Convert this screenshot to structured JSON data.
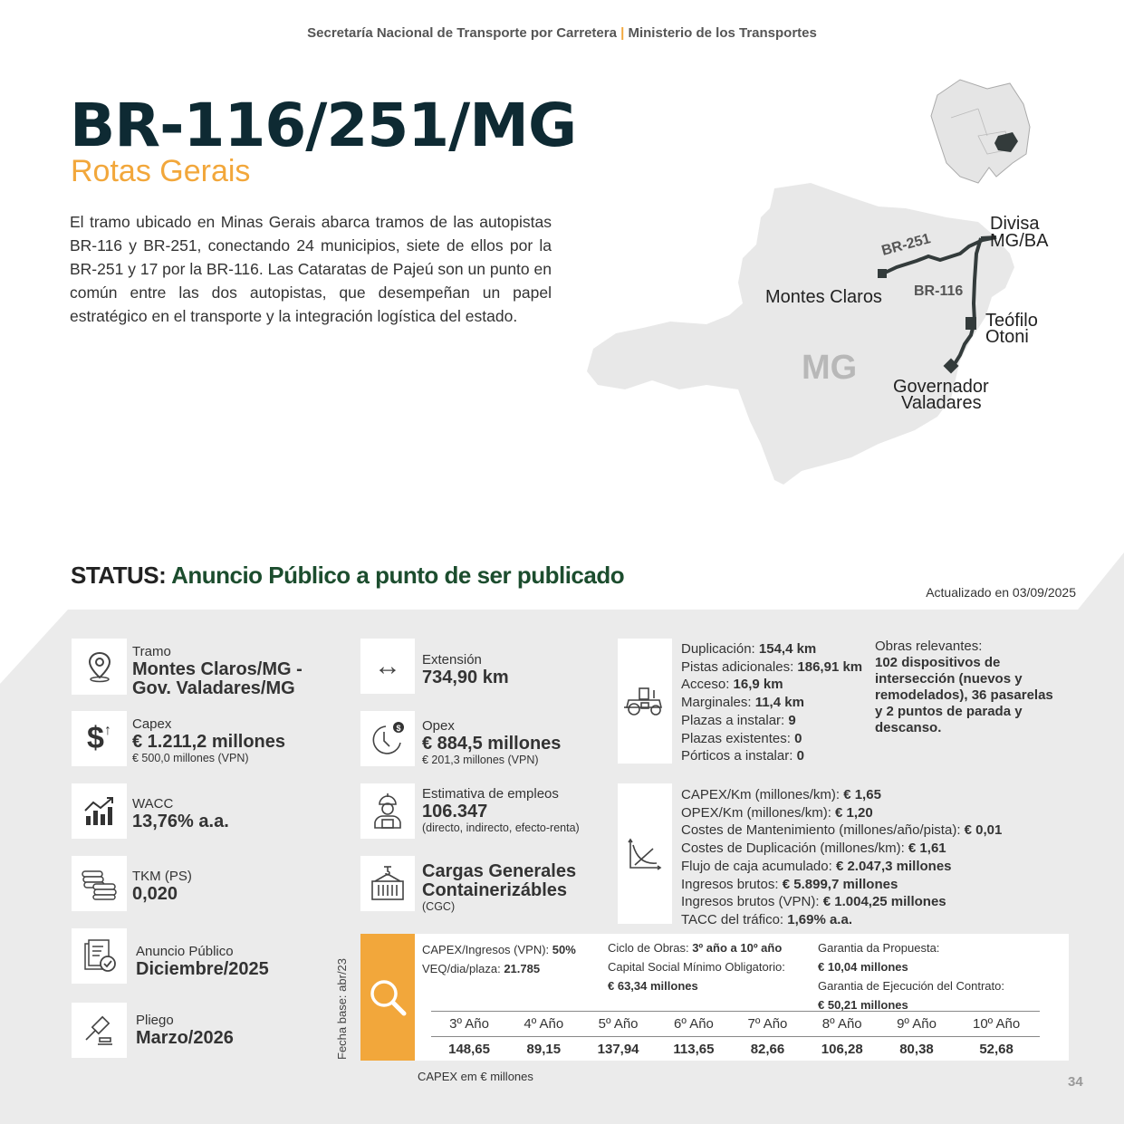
{
  "header": {
    "left": "Secretaría Nacional de Transporte por Carretera",
    "sep": "|",
    "right": "Ministerio de los Transportes"
  },
  "title": "BR-116/251/MG",
  "subtitle": "Rotas Gerais",
  "description": "El tramo ubicado en Minas Gerais abarca tramos de las autopistas BR-116 y BR-251, conectando 24 municipios, siete de ellos por la BR-251 y 17 por la BR-116. Las Cataratas de Pajeú son un punto en común entre las dos autopistas, que desempeñan un papel estratégico en el transporte y la integración logística del estado.",
  "map": {
    "state": "MG",
    "roads": [
      "BR-251",
      "BR-116"
    ],
    "cities": [
      "Montes Claros",
      "Divisa",
      "MG/BA",
      "Teófilo",
      "Otoni",
      "Governador",
      "Valadares"
    ],
    "route_color": "#333b3b",
    "state_fill": "#e8e8e8"
  },
  "status": {
    "label": "STATUS:",
    "value": "Anuncio Público a punto de ser publicado",
    "color": "#1c4d2e"
  },
  "updated": "Actualizado en 03/09/2025",
  "cards": {
    "tramo": {
      "label": "Tramo",
      "value1": "Montes Claros/MG -",
      "value2": "Gov. Valadares/MG"
    },
    "capex": {
      "label": "Capex",
      "value": "€ 1.211,2 millones",
      "note": "€ 500,0 millones (VPN)"
    },
    "wacc": {
      "label": "WACC",
      "value": "13,76% a.a."
    },
    "tkm": {
      "label": "TKM (PS)",
      "value": "0,020"
    },
    "anuncio": {
      "label": "Anuncio Público",
      "value": "Diciembre/2025"
    },
    "pliego": {
      "label": "Pliego",
      "value": "Marzo/2026"
    },
    "extension": {
      "label": "Extensión",
      "value": "734,90 km"
    },
    "opex": {
      "label": "Opex",
      "value": "€ 884,5 millones",
      "note": "€ 201,3 millones (VPN)"
    },
    "empleos": {
      "label": "Estimativa de empleos",
      "value": "106.347",
      "note": "(directo, indirecto, efecto-renta)"
    },
    "cargas": {
      "value1": "Cargas Generales",
      "value2": "Containerizábles",
      "note": "(CGC)"
    }
  },
  "obras": {
    "items": [
      {
        "k": "Duplicación: ",
        "v": "154,4 km"
      },
      {
        "k": "Pistas adicionales: ",
        "v": "186,91 km"
      },
      {
        "k": "Acceso: ",
        "v": "16,9 km"
      },
      {
        "k": "Marginales: ",
        "v": "11,4 km"
      },
      {
        "k": "Plazas a instalar:  ",
        "v": "9"
      },
      {
        "k": "Plazas existentes: ",
        "v": "0"
      },
      {
        "k": "Pórticos a instalar: ",
        "v": "0"
      }
    ],
    "relevantes_label": "Obras relevantes:",
    "relevantes": "102 dispositivos de intersección (nuevos y remodelados), 36 pasarelas y 2 puntos de parada y descanso."
  },
  "costs": [
    {
      "k": "CAPEX/Km (millones/km): ",
      "v": "€ 1,65"
    },
    {
      "k": "OPEX/Km (millones/km): ",
      "v": "€ 1,20"
    },
    {
      "k": "Costes de Mantenimiento (millones/año/pista): ",
      "v": "€ 0,01"
    },
    {
      "k": "Costes de Duplicación (millones/km): ",
      "v": "€ 1,61"
    },
    {
      "k": "Flujo de caja acumulado:  ",
      "v": "€ 2.047,3 millones"
    },
    {
      "k": "Ingresos brutos: ",
      "v": "€ 5.899,7 millones"
    },
    {
      "k": "Ingresos brutos (VPN): ",
      "v": "€ 1.004,25 millones"
    },
    {
      "k": "TACC del tráfico: ",
      "v": "1,69% a.a."
    }
  ],
  "financial": {
    "capex_ingresos": {
      "k": "CAPEX/Ingresos (VPN): ",
      "v": "50%"
    },
    "veq": {
      "k": "VEQ/dia/plaza: ",
      "v": "21.785"
    },
    "ciclo": {
      "k": "Ciclo de Obras: ",
      "v": "3º año a 10º año"
    },
    "capital_label": "Capital Social Mínimo Obligatorio:",
    "capital": "€ 63,34 millones",
    "garantia_prop_label": "Garantia da Propuesta:",
    "garantia_prop": "€ 10,04 millones",
    "garantia_ejec_label": "Garantia de Ejecución del Contrato:",
    "garantia_ejec": "€ 50,21 millones",
    "years": [
      "3º Año",
      "4º Año",
      "5º Año",
      "6º Año",
      "7º Año",
      "8º Año",
      "9º Año",
      "10º Año"
    ],
    "values": [
      "148,65",
      "89,15",
      "137,94",
      "113,65",
      "82,66",
      "106,28",
      "80,38",
      "52,68"
    ],
    "fecha_base": "Fecha base: abr/23",
    "capex_note": "CAPEX em € millones"
  },
  "page_number": "34",
  "colors": {
    "accent": "#f2a73b",
    "title": "#0e2a33",
    "status": "#1c4d2e",
    "panel": "#ebebeb"
  }
}
